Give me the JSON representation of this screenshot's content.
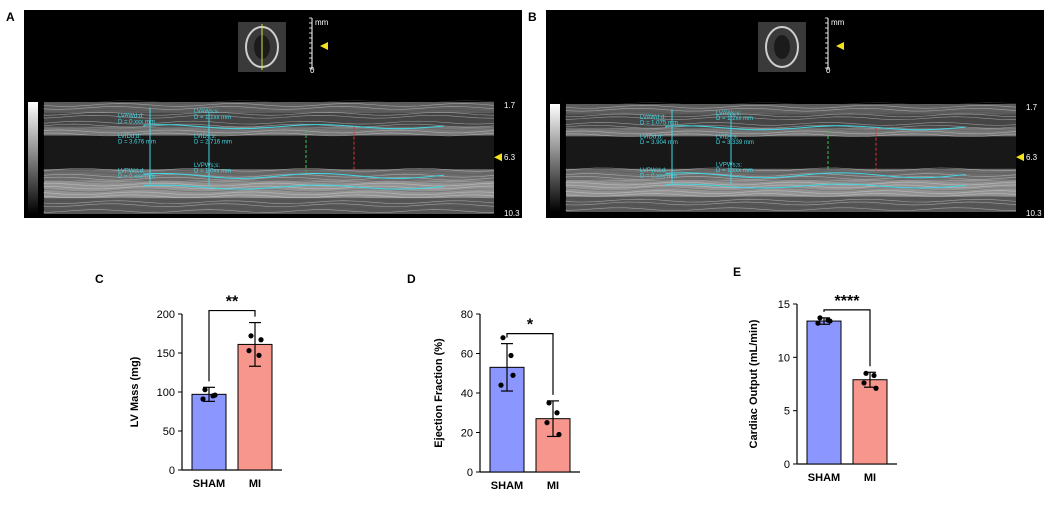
{
  "panels": {
    "A": {
      "letter": "A",
      "scale_top": "mm",
      "scale_zero": "0",
      "depth_labels": [
        "1.7",
        "6.3",
        "10.3"
      ],
      "measurements": [
        "LVAWd;d:",
        "D = 0.xxx mm",
        "LVIDd;d:",
        "D = 3.676 mm",
        "LVPWd;d:",
        "D = 0.xxx mm",
        "LVAWs;s:",
        "D = 1.1xx mm",
        "LVIDs;s:",
        "D = 2.716 mm",
        "LVPWs;s:",
        "D = 1.0xx mm"
      ]
    },
    "B": {
      "letter": "B",
      "scale_top": "mm",
      "scale_zero": "0",
      "depth_labels": [
        "1.7",
        "6.3",
        "10.3"
      ],
      "measurements": [
        "LVAWd;d:",
        "D = 1.075 mm",
        "LVIDd;d:",
        "D = 3.904 mm",
        "LVPWd;d:",
        "D = 0.xxx mm",
        "LVAWs;s:",
        "D = 1.2xx mm",
        "LVIDs;s:",
        "D = 3.339 mm",
        "LVPWs;s:",
        "D = 1.xxx mm"
      ]
    }
  },
  "chart_data": [
    {
      "panel": "C",
      "type": "bar",
      "ylabel": "LV Mass (mg)",
      "categories": [
        "SHAM",
        "MI"
      ],
      "values": [
        97,
        161
      ],
      "errors": [
        9,
        28
      ],
      "points": [
        [
          103,
          95,
          91,
          96
        ],
        [
          172,
          147,
          153,
          167
        ]
      ],
      "colors": [
        "#8b97ff",
        "#f7968c"
      ],
      "ylim": [
        0,
        200
      ],
      "yticks": [
        0,
        50,
        100,
        150,
        200
      ],
      "significance": "**"
    },
    {
      "panel": "D",
      "type": "bar",
      "ylabel": "Ejection Fraction (%)",
      "categories": [
        "SHAM",
        "MI"
      ],
      "values": [
        53,
        27
      ],
      "errors": [
        12,
        9
      ],
      "points": [
        [
          68,
          59,
          44,
          49
        ],
        [
          35,
          30,
          25,
          19
        ]
      ],
      "colors": [
        "#8b97ff",
        "#f7968c"
      ],
      "ylim": [
        0,
        80
      ],
      "yticks": [
        0,
        20,
        40,
        60,
        80
      ],
      "significance": "*"
    },
    {
      "panel": "E",
      "type": "bar",
      "ylabel": "Cardiac Output (mL/min)",
      "categories": [
        "SHAM",
        "MI"
      ],
      "values": [
        13.4,
        7.9
      ],
      "errors": [
        0.3,
        0.7
      ],
      "points": [
        [
          13.7,
          13.5,
          13.2,
          13.4
        ],
        [
          8.5,
          8.3,
          7.6,
          7.1
        ]
      ],
      "colors": [
        "#8b97ff",
        "#f7968c"
      ],
      "ylim": [
        0,
        15
      ],
      "yticks": [
        0,
        5,
        10,
        15
      ],
      "significance": "****"
    }
  ]
}
